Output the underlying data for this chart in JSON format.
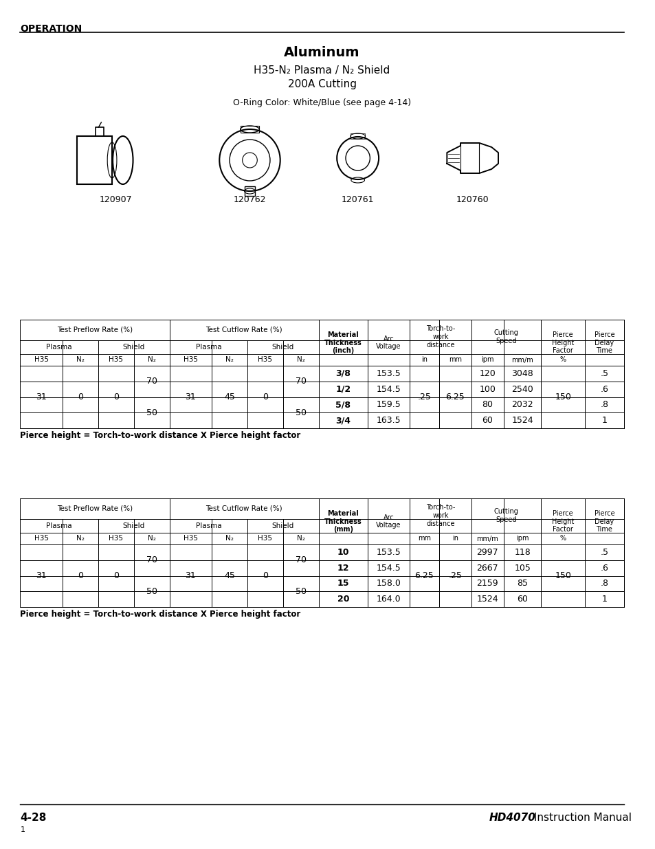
{
  "title": "Aluminum",
  "subtitle1": "H35-N₂ Plasma / N₂ Shield",
  "subtitle2": "200A Cutting",
  "oring_text": "O-Ring Color: White/Blue (see page 4-14)",
  "part_numbers": [
    "120907",
    "120762",
    "120761",
    "120760"
  ],
  "header_section": "OPERATION",
  "page_number": "4-28",
  "manual_name": "HD4070 Instruction Manual",
  "footer_note": "1",
  "pierce_note": "Pierce height = Torch-to-work distance X Pierce height factor",
  "table1": {
    "preflow_plasma_h35": "31",
    "preflow_plasma_n2": "0",
    "preflow_shield_h35": "0",
    "preflow_shield_n2_top": "70",
    "preflow_shield_n2_bot": "50",
    "cutflow_plasma_h35": "31",
    "cutflow_plasma_n2": "45",
    "cutflow_shield_h35": "0",
    "cutflow_shield_n2_top": "70",
    "cutflow_shield_n2_bot": "50",
    "rows": [
      {
        "thickness": "3/8",
        "arc_voltage": "153.5",
        "speed_ipm": "120",
        "speed_mmm": "3048",
        "delay": ".5"
      },
      {
        "thickness": "1/2",
        "arc_voltage": "154.5",
        "speed_ipm": "100",
        "speed_mmm": "2540",
        "delay": ".6"
      },
      {
        "thickness": "5/8",
        "arc_voltage": "159.5",
        "speed_ipm": "80",
        "speed_mmm": "2032",
        "delay": ".8"
      },
      {
        "thickness": "3/4",
        "arc_voltage": "163.5",
        "speed_ipm": "60",
        "speed_mmm": "1524",
        "delay": "1"
      }
    ],
    "torch_dist_in": ".25",
    "torch_dist_mm": "6.25",
    "pierce_height_factor": "150"
  },
  "table2": {
    "preflow_plasma_h35": "31",
    "preflow_plasma_n2": "0",
    "preflow_shield_h35": "0",
    "preflow_shield_n2_top": "70",
    "preflow_shield_n2_bot": "50",
    "cutflow_plasma_h35": "31",
    "cutflow_plasma_n2": "45",
    "cutflow_shield_h35": "0",
    "cutflow_shield_n2_top": "70",
    "cutflow_shield_n2_bot": "50",
    "rows": [
      {
        "thickness": "10",
        "arc_voltage": "153.5",
        "speed_mmm": "2997",
        "speed_ipm": "118",
        "delay": ".5"
      },
      {
        "thickness": "12",
        "arc_voltage": "154.5",
        "speed_mmm": "2667",
        "speed_ipm": "105",
        "delay": ".6"
      },
      {
        "thickness": "15",
        "arc_voltage": "158.0",
        "speed_mmm": "2159",
        "speed_ipm": "85",
        "delay": ".8"
      },
      {
        "thickness": "20",
        "arc_voltage": "164.0",
        "speed_mmm": "1524",
        "speed_ipm": "60",
        "delay": "1"
      }
    ],
    "torch_dist_mm": "6.25",
    "torch_dist_in": ".25",
    "pierce_height_factor": "150"
  }
}
